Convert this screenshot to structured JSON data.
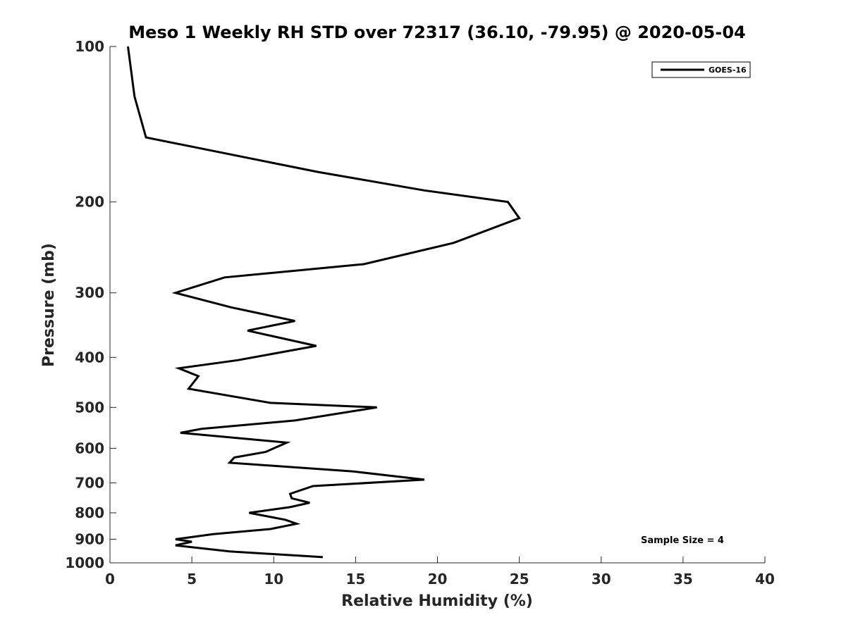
{
  "chart_data": {
    "type": "line",
    "title": "Meso 1 Weekly RH STD over 72317 (36.10, -79.95) @ 2020-05-04",
    "xlabel": "Relative Humidity (%)",
    "ylabel": "Pressure (mb)",
    "xlim": [
      0,
      40
    ],
    "ylim": [
      1000,
      100
    ],
    "y_scale": "log",
    "y_reversed": true,
    "x_ticks": [
      0,
      5,
      10,
      15,
      20,
      25,
      30,
      35,
      40
    ],
    "y_ticks": [
      100,
      200,
      300,
      400,
      500,
      600,
      700,
      800,
      900,
      1000
    ],
    "grid": false,
    "legend_position": "top-right",
    "annotation": "Sample Size = 4",
    "series": [
      {
        "name": "GOES-16",
        "color": "#000000",
        "points": [
          [
            1.1,
            100
          ],
          [
            1.5,
            125
          ],
          [
            2.2,
            150
          ],
          [
            12.7,
            175
          ],
          [
            19.2,
            190
          ],
          [
            24.3,
            200
          ],
          [
            25.0,
            215
          ],
          [
            21.0,
            240
          ],
          [
            15.5,
            264
          ],
          [
            7.0,
            280
          ],
          [
            4.0,
            300
          ],
          [
            7.4,
            320
          ],
          [
            11.3,
            340
          ],
          [
            8.4,
            355
          ],
          [
            12.6,
            380
          ],
          [
            7.8,
            405
          ],
          [
            4.2,
            420
          ],
          [
            5.4,
            435
          ],
          [
            4.8,
            460
          ],
          [
            9.8,
            490
          ],
          [
            16.3,
            500
          ],
          [
            11.3,
            530
          ],
          [
            5.6,
            550
          ],
          [
            4.3,
            560
          ],
          [
            10.8,
            585
          ],
          [
            9.5,
            610
          ],
          [
            7.6,
            625
          ],
          [
            7.3,
            640
          ],
          [
            14.8,
            665
          ],
          [
            19.2,
            690
          ],
          [
            12.4,
            710
          ],
          [
            11.0,
            735
          ],
          [
            11.1,
            750
          ],
          [
            12.2,
            765
          ],
          [
            11.0,
            780
          ],
          [
            8.5,
            800
          ],
          [
            10.7,
            825
          ],
          [
            11.4,
            840
          ],
          [
            9.8,
            860
          ],
          [
            6.3,
            880
          ],
          [
            4.0,
            900
          ],
          [
            5.0,
            910
          ],
          [
            4.0,
            925
          ],
          [
            7.3,
            950
          ],
          [
            13.0,
            975
          ]
        ]
      }
    ]
  }
}
